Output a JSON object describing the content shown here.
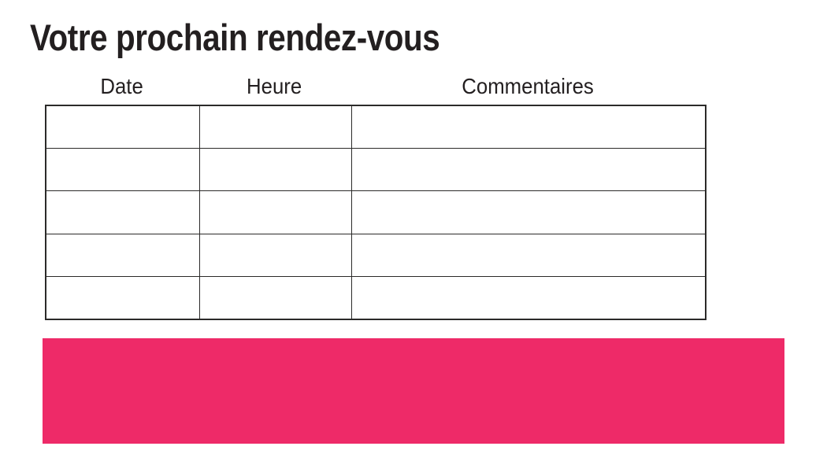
{
  "page": {
    "title": "Votre prochain rendez-vous"
  },
  "table": {
    "columns": [
      {
        "label": "Date"
      },
      {
        "label": "Heure"
      },
      {
        "label": "Commentaires"
      }
    ],
    "row_count": 5,
    "rows": [
      [
        "",
        "",
        ""
      ],
      [
        "",
        "",
        ""
      ],
      [
        "",
        "",
        ""
      ],
      [
        "",
        "",
        ""
      ],
      [
        "",
        "",
        ""
      ]
    ]
  },
  "banner": {
    "color": "#EE2A68",
    "text": ""
  },
  "colors": {
    "background": "#FFFFFF",
    "text": "#231F20",
    "table_border": "#2B2A29",
    "accent_pink": "#EE2A68"
  }
}
